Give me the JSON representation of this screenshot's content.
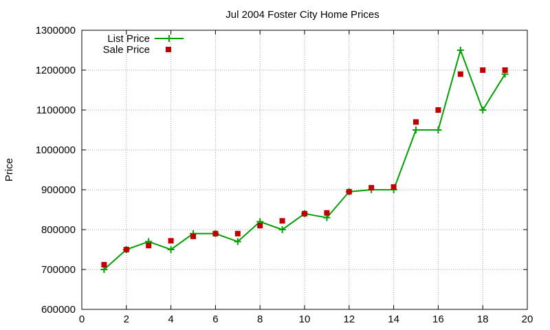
{
  "chart_data": {
    "type": "line",
    "title": "Jul 2004 Foster City Home Prices",
    "xlabel": "",
    "ylabel": "Price",
    "xlim": [
      0,
      20
    ],
    "ylim": [
      600000,
      1300000
    ],
    "xticks": [
      0,
      2,
      4,
      6,
      8,
      10,
      12,
      14,
      16,
      18,
      20
    ],
    "yticks": [
      600000,
      700000,
      800000,
      900000,
      1000000,
      1100000,
      1200000,
      1300000
    ],
    "grid": true,
    "legend_position": "top-left",
    "series": [
      {
        "name": "List Price",
        "style": "line-with-plus-markers",
        "color": "#00a000",
        "x": [
          1,
          2,
          3,
          4,
          5,
          6,
          7,
          8,
          9,
          10,
          11,
          12,
          13,
          14,
          15,
          16,
          17,
          18,
          19
        ],
        "y": [
          700000,
          750000,
          770000,
          750000,
          790000,
          790000,
          770000,
          820000,
          800000,
          840000,
          830000,
          895000,
          900000,
          900000,
          1050000,
          1050000,
          1250000,
          1100000,
          1190000
        ]
      },
      {
        "name": "Sale Price",
        "style": "square-markers",
        "color": "#c00000",
        "x": [
          1,
          2,
          3,
          4,
          5,
          6,
          7,
          8,
          9,
          10,
          11,
          12,
          13,
          14,
          15,
          16,
          17,
          18,
          19
        ],
        "y": [
          712000,
          750000,
          760000,
          772000,
          783000,
          790000,
          790000,
          810000,
          822000,
          840000,
          842000,
          895000,
          905000,
          907000,
          1070000,
          1100000,
          1190000,
          1200000,
          1200000
        ]
      }
    ]
  }
}
